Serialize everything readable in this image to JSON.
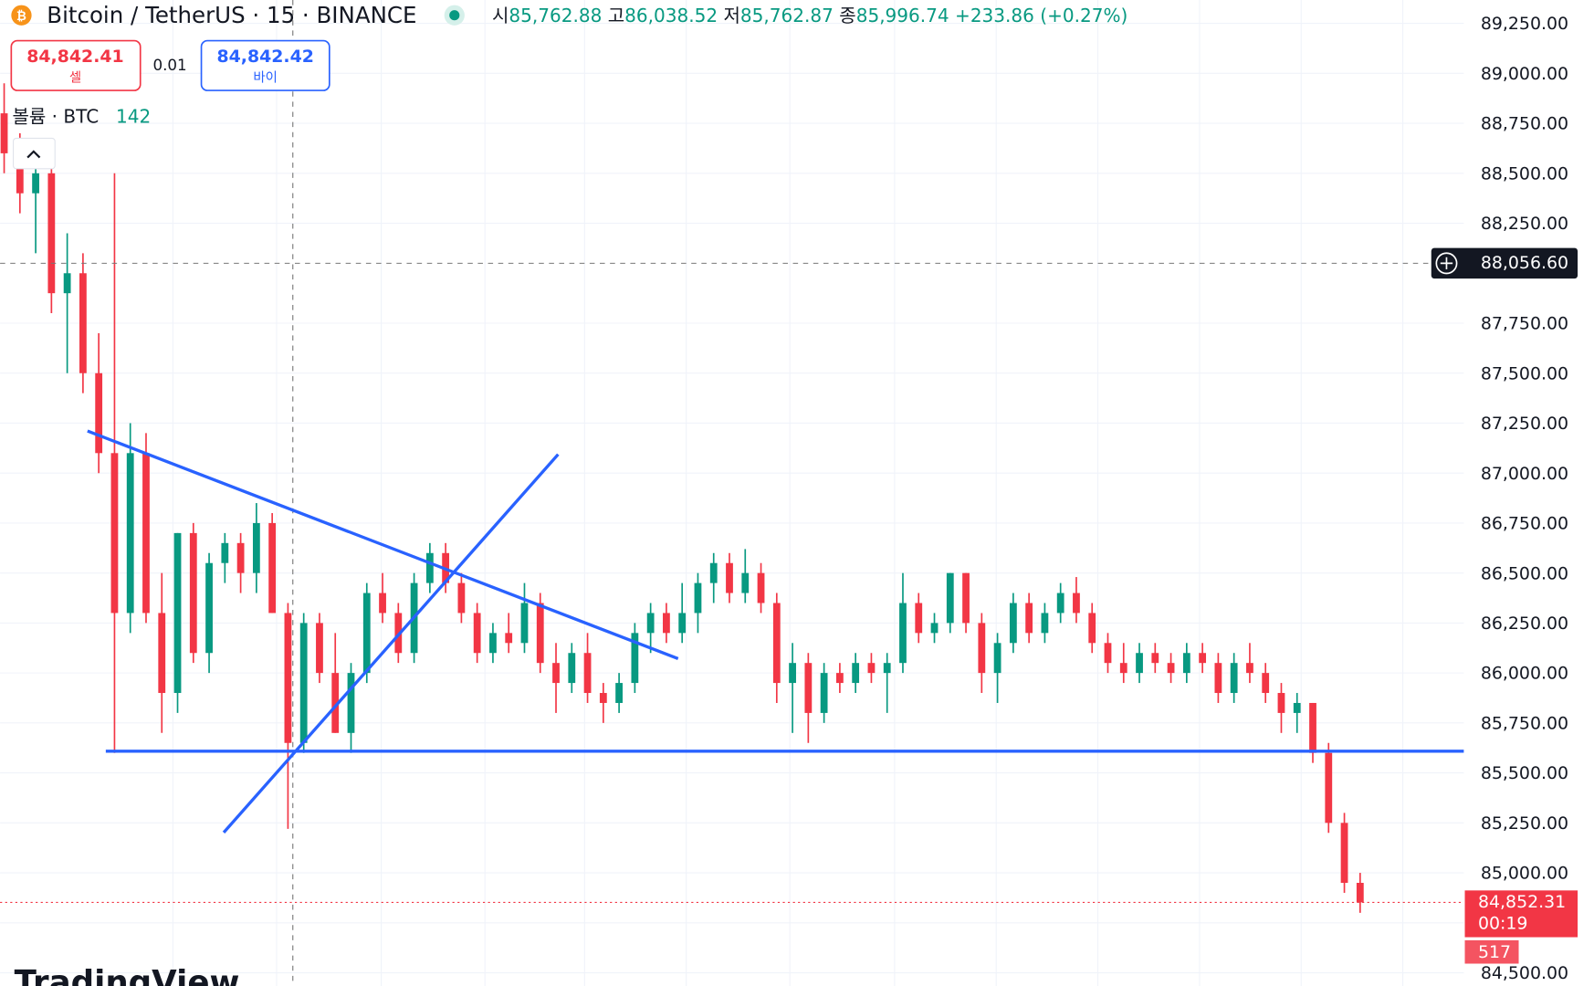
{
  "header": {
    "title": "Bitcoin / TetherUS · 15 · BINANCE",
    "open_label": "시",
    "open": "85,762.88",
    "high_label": "고",
    "high": "86,038.52",
    "low_label": "저",
    "low": "85,762.87",
    "close_label": "종",
    "close": "85,996.74",
    "change": "+233.86 (+0.27%)"
  },
  "trade": {
    "sell_price": "84,842.41",
    "sell_label": "셀",
    "spread": "0.01",
    "buy_price": "84,842.42",
    "buy_label": "바이"
  },
  "volume": {
    "label": "볼륨 · BTC",
    "value": "142",
    "last": "517"
  },
  "crosshair_price": "88,056.60",
  "last_price": "84,852.31",
  "countdown": "00:19",
  "logo": "TradingView",
  "chart_data": {
    "type": "candlestick",
    "up_color": "#089981",
    "down_color": "#f23645",
    "grid": true,
    "ylim": [
      84500,
      89250
    ],
    "yticks": [
      {
        "value": 84500,
        "label": "84,500.00"
      },
      {
        "value": 84750,
        "label": "84,750.00"
      },
      {
        "value": 85000,
        "label": "85,000.00"
      },
      {
        "value": 85250,
        "label": "85,250.00"
      },
      {
        "value": 85500,
        "label": "85,500.00"
      },
      {
        "value": 85750,
        "label": "85,750.00"
      },
      {
        "value": 86000,
        "label": "86,000.00"
      },
      {
        "value": 86250,
        "label": "86,250.00"
      },
      {
        "value": 86500,
        "label": "86,500.00"
      },
      {
        "value": 86750,
        "label": "86,750.00"
      },
      {
        "value": 87000,
        "label": "87,000.00"
      },
      {
        "value": 87250,
        "label": "87,250.00"
      },
      {
        "value": 87500,
        "label": "87,500.00"
      },
      {
        "value": 87750,
        "label": "87,750.00"
      },
      {
        "value": 88250,
        "label": "88,250.00"
      },
      {
        "value": 88500,
        "label": "88,500.00"
      },
      {
        "value": 88750,
        "label": "88,750.00"
      },
      {
        "value": 89000,
        "label": "89,000.00"
      },
      {
        "value": 89250,
        "label": "89,250.00"
      }
    ],
    "open": [
      88800,
      88600,
      88400,
      88500,
      87900,
      88000,
      87500,
      87100,
      86300,
      87100,
      86300,
      85900,
      86700,
      86100,
      86550,
      86650,
      86500,
      86750,
      86300,
      85650,
      86250,
      86000,
      85700,
      86000,
      86400,
      86300,
      86100,
      86450,
      86600,
      86450,
      86300,
      86100,
      86200,
      86150,
      86350,
      86050,
      85950,
      86100,
      85900,
      85850,
      85950,
      86200,
      86300,
      86200,
      86300,
      86450,
      86550,
      86400,
      86500,
      86350,
      85950,
      86050,
      85800,
      86000,
      85950,
      86050,
      86000,
      86050,
      86350,
      86200,
      86250,
      86500,
      86250,
      86000,
      86150,
      86350,
      86200,
      86300,
      86400,
      86300,
      86150,
      86050,
      86000,
      86100,
      86050,
      86000,
      86100,
      86050,
      85900,
      86050,
      86000,
      85900,
      85800,
      85850,
      85600,
      85250,
      84950
    ],
    "high": [
      88950,
      88700,
      88650,
      88600,
      88200,
      88100,
      87700,
      88500,
      87250,
      87200,
      86500,
      86700,
      86750,
      86600,
      86700,
      86700,
      86850,
      86800,
      86350,
      86300,
      86300,
      86200,
      86050,
      86450,
      86500,
      86350,
      86500,
      86650,
      86650,
      86500,
      86350,
      86250,
      86300,
      86450,
      86400,
      86150,
      86150,
      86200,
      85950,
      86000,
      86250,
      86350,
      86350,
      86450,
      86500,
      86600,
      86600,
      86620,
      86550,
      86400,
      86150,
      86100,
      86050,
      86050,
      86100,
      86100,
      86100,
      86500,
      86400,
      86300,
      86500,
      86500,
      86300,
      86200,
      86400,
      86400,
      86350,
      86450,
      86480,
      86350,
      86200,
      86150,
      86150,
      86150,
      86100,
      86150,
      86150,
      86100,
      86100,
      86150,
      86050,
      85950,
      85900,
      85850,
      85650,
      85300,
      85000
    ],
    "low": [
      88500,
      88300,
      88100,
      87800,
      87500,
      87400,
      87000,
      85600,
      86200,
      86250,
      85700,
      85800,
      86050,
      86000,
      86450,
      86400,
      86400,
      86300,
      85220,
      85600,
      85950,
      85700,
      85600,
      85950,
      86250,
      86050,
      86050,
      86400,
      86400,
      86250,
      86050,
      86050,
      86100,
      86100,
      86000,
      85800,
      85900,
      85850,
      85750,
      85800,
      85900,
      86100,
      86150,
      86150,
      86200,
      86350,
      86350,
      86350,
      86300,
      85850,
      85700,
      85650,
      85750,
      85900,
      85900,
      85950,
      85800,
      86000,
      86150,
      86150,
      86200,
      86200,
      85900,
      85850,
      86100,
      86150,
      86150,
      86250,
      86250,
      86100,
      86000,
      85950,
      85950,
      86000,
      85950,
      85950,
      86000,
      85850,
      85850,
      85950,
      85850,
      85700,
      85700,
      85550,
      85200,
      84900,
      84800
    ],
    "close": [
      88600,
      88400,
      88500,
      87900,
      88000,
      87500,
      87100,
      86300,
      87100,
      86300,
      85900,
      86700,
      86100,
      86550,
      86650,
      86500,
      86750,
      86300,
      85650,
      86250,
      86000,
      85700,
      86000,
      86400,
      86300,
      86100,
      86450,
      86600,
      86450,
      86300,
      86100,
      86200,
      86150,
      86350,
      86050,
      85950,
      86100,
      85900,
      85850,
      85950,
      86200,
      86300,
      86200,
      86300,
      86450,
      86550,
      86400,
      86500,
      86350,
      85950,
      86050,
      85800,
      86000,
      85950,
      86050,
      86000,
      86050,
      86350,
      86200,
      86250,
      86500,
      86250,
      86000,
      86150,
      86350,
      86200,
      86300,
      86400,
      86300,
      86150,
      86050,
      86000,
      86100,
      86050,
      86000,
      86100,
      86050,
      85900,
      86050,
      86000,
      85900,
      85800,
      85850,
      85600,
      85250,
      84950,
      84852.31
    ]
  }
}
